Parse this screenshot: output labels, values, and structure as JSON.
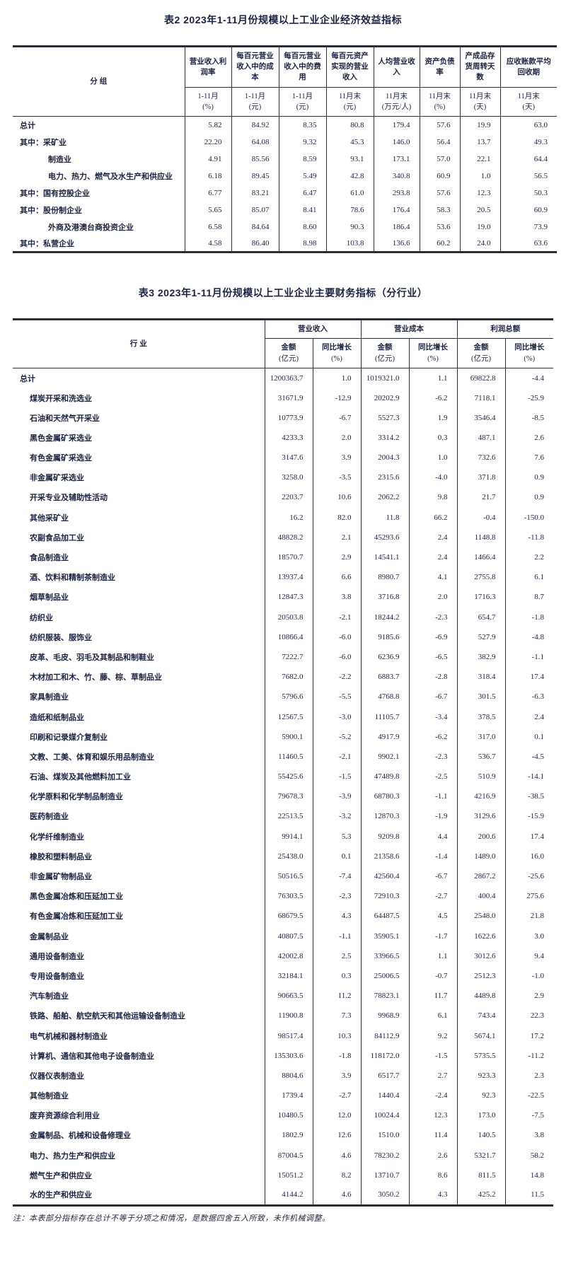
{
  "page": {
    "note": "注：本表部分指标存在总计不等于分项之和情况，是数据四舍五入所致，未作机械调整。"
  },
  "table2": {
    "title": "表2  2023年1-11月份规模以上工业企业经济效益指标",
    "group_header": "分  组",
    "columns": [
      {
        "name": "营业收入利润率",
        "period": "1-11月",
        "unit": "(%)"
      },
      {
        "name": "每百元营业收入中的成本",
        "period": "1-11月",
        "unit": "(元)"
      },
      {
        "name": "每百元营业收入中的费用",
        "period": "1-11月",
        "unit": "(元)"
      },
      {
        "name": "每百元资产实现的营业收入",
        "period": "11月末",
        "unit": "(元)"
      },
      {
        "name": "人均营业收入",
        "period": "11月末",
        "unit": "(万元/人)"
      },
      {
        "name": "资产负债率",
        "period": "11月末",
        "unit": "(%)"
      },
      {
        "name": "产成品存货周转天数",
        "period": "11月末",
        "unit": "(天)"
      },
      {
        "name": "应收账款平均回收期",
        "period": "11月末",
        "unit": "(天)"
      }
    ],
    "rows": [
      {
        "label": "总计",
        "indent": 0,
        "values": [
          "5.82",
          "84.92",
          "8.35",
          "80.8",
          "179.4",
          "57.6",
          "19.9",
          "63.0"
        ]
      },
      {
        "label": "其中：采矿业",
        "indent": 0,
        "values": [
          "22.20",
          "64.08",
          "9.32",
          "45.3",
          "146.0",
          "56.4",
          "13.7",
          "49.3"
        ]
      },
      {
        "label": "制造业",
        "indent": 1,
        "values": [
          "4.91",
          "85.56",
          "8.59",
          "93.1",
          "173.1",
          "57.0",
          "22.1",
          "64.4"
        ]
      },
      {
        "label": "电力、热力、燃气及水生产和供应业",
        "indent": 1,
        "values": [
          "6.18",
          "89.45",
          "5.49",
          "42.8",
          "340.8",
          "60.9",
          "1.0",
          "56.5"
        ]
      },
      {
        "label": "其中：国有控股企业",
        "indent": 0,
        "values": [
          "6.77",
          "83.21",
          "6.47",
          "61.0",
          "293.8",
          "57.6",
          "12.3",
          "50.3"
        ]
      },
      {
        "label": "其中：股份制企业",
        "indent": 0,
        "values": [
          "5.65",
          "85.07",
          "8.41",
          "78.6",
          "176.4",
          "58.3",
          "20.5",
          "60.9"
        ]
      },
      {
        "label": "外商及港澳台商投资企业",
        "indent": 1,
        "values": [
          "6.58",
          "84.64",
          "8.60",
          "90.3",
          "186.4",
          "53.6",
          "19.0",
          "73.9"
        ]
      },
      {
        "label": "其中：私营企业",
        "indent": 0,
        "values": [
          "4.58",
          "86.40",
          "8.98",
          "103.8",
          "136.6",
          "60.2",
          "24.0",
          "63.6"
        ]
      }
    ]
  },
  "table3": {
    "title": "表3  2023年1-11月份规模以上工业企业主要财务指标（分行业）",
    "industry_header": "行  业",
    "groups": [
      {
        "label": "营业收入"
      },
      {
        "label": "营业成本"
      },
      {
        "label": "利润总额"
      }
    ],
    "sub_columns": [
      {
        "line1": "金额",
        "line2": "(亿元)"
      },
      {
        "line1": "同比增长",
        "line2": "(%)"
      },
      {
        "line1": "金额",
        "line2": "(亿元)"
      },
      {
        "line1": "同比增长",
        "line2": "(%)"
      },
      {
        "line1": "金额",
        "line2": "(亿元)"
      },
      {
        "line1": "同比增长",
        "line2": "(%)"
      }
    ],
    "rows": [
      {
        "label": "总计",
        "indent": 0,
        "values": [
          "1200363.7",
          "1.0",
          "1019321.0",
          "1.1",
          "69822.8",
          "-4.4"
        ]
      },
      {
        "label": "煤炭开采和洗选业",
        "indent": 1,
        "values": [
          "31671.9",
          "-12.9",
          "20202.9",
          "-6.2",
          "7118.1",
          "-25.9"
        ]
      },
      {
        "label": "石油和天然气开采业",
        "indent": 1,
        "values": [
          "10773.9",
          "-6.7",
          "5527.3",
          "1.9",
          "3546.4",
          "-8.5"
        ]
      },
      {
        "label": "黑色金属矿采选业",
        "indent": 1,
        "values": [
          "4233.3",
          "2.0",
          "3314.2",
          "0.3",
          "487.1",
          "2.6"
        ]
      },
      {
        "label": "有色金属矿采选业",
        "indent": 1,
        "values": [
          "3147.6",
          "3.9",
          "2004.3",
          "1.0",
          "732.6",
          "7.6"
        ]
      },
      {
        "label": "非金属矿采选业",
        "indent": 1,
        "values": [
          "3258.0",
          "-3.5",
          "2315.6",
          "-4.0",
          "371.8",
          "0.9"
        ]
      },
      {
        "label": "开采专业及辅助性活动",
        "indent": 1,
        "values": [
          "2203.7",
          "10.6",
          "2062.2",
          "9.8",
          "21.7",
          "0.9"
        ]
      },
      {
        "label": "其他采矿业",
        "indent": 1,
        "values": [
          "16.2",
          "82.0",
          "11.8",
          "66.2",
          "-0.4",
          "-150.0"
        ]
      },
      {
        "label": "农副食品加工业",
        "indent": 1,
        "values": [
          "48828.2",
          "2.1",
          "45293.6",
          "2.4",
          "1148.8",
          "-11.8"
        ]
      },
      {
        "label": "食品制造业",
        "indent": 1,
        "values": [
          "18570.7",
          "2.9",
          "14541.1",
          "2.4",
          "1466.4",
          "2.2"
        ]
      },
      {
        "label": "酒、饮料和精制茶制造业",
        "indent": 1,
        "values": [
          "13937.4",
          "6.6",
          "8980.7",
          "4.1",
          "2755.8",
          "6.1"
        ]
      },
      {
        "label": "烟草制品业",
        "indent": 1,
        "values": [
          "12847.3",
          "3.8",
          "3716.8",
          "2.0",
          "1716.3",
          "8.7"
        ]
      },
      {
        "label": "纺织业",
        "indent": 1,
        "values": [
          "20503.8",
          "-2.1",
          "18244.2",
          "-2.3",
          "654.7",
          "-1.8"
        ]
      },
      {
        "label": "纺织服装、服饰业",
        "indent": 1,
        "values": [
          "10866.4",
          "-6.0",
          "9185.6",
          "-6.9",
          "527.9",
          "-4.8"
        ]
      },
      {
        "label": "皮革、毛皮、羽毛及其制品和制鞋业",
        "indent": 1,
        "values": [
          "7222.7",
          "-6.0",
          "6236.9",
          "-6.5",
          "382.9",
          "-1.1"
        ]
      },
      {
        "label": "木材加工和木、竹、藤、棕、草制品业",
        "indent": 1,
        "values": [
          "7682.0",
          "-2.2",
          "6883.7",
          "-2.8",
          "318.4",
          "17.4"
        ]
      },
      {
        "label": "家具制造业",
        "indent": 1,
        "values": [
          "5796.6",
          "-5.5",
          "4768.8",
          "-6.7",
          "301.5",
          "-6.3"
        ]
      },
      {
        "label": "造纸和纸制品业",
        "indent": 1,
        "values": [
          "12567.5",
          "-3.0",
          "11105.7",
          "-3.4",
          "378.5",
          "2.4"
        ]
      },
      {
        "label": "印刷和记录媒介复制业",
        "indent": 1,
        "values": [
          "5900.1",
          "-5.2",
          "4917.9",
          "-6.2",
          "317.0",
          "0.1"
        ]
      },
      {
        "label": "文教、工美、体育和娱乐用品制造业",
        "indent": 1,
        "values": [
          "11460.5",
          "-2.1",
          "9902.1",
          "-2.3",
          "536.7",
          "-4.5"
        ]
      },
      {
        "label": "石油、煤炭及其他燃料加工业",
        "indent": 1,
        "values": [
          "55425.6",
          "-1.5",
          "47489.8",
          "-2.5",
          "510.9",
          "-14.1"
        ]
      },
      {
        "label": "化学原料和化学制品制造业",
        "indent": 1,
        "values": [
          "79678.3",
          "-3.9",
          "68780.3",
          "-1.1",
          "4216.9",
          "-38.5"
        ]
      },
      {
        "label": "医药制造业",
        "indent": 1,
        "values": [
          "22513.5",
          "-3.2",
          "12870.3",
          "-1.9",
          "3129.6",
          "-15.9"
        ]
      },
      {
        "label": "化学纤维制造业",
        "indent": 1,
        "values": [
          "9914.1",
          "5.3",
          "9209.8",
          "4.4",
          "200.6",
          "17.4"
        ]
      },
      {
        "label": "橡胶和塑料制品业",
        "indent": 1,
        "values": [
          "25438.0",
          "0.1",
          "21358.6",
          "-1.4",
          "1489.0",
          "16.0"
        ]
      },
      {
        "label": "非金属矿物制品业",
        "indent": 1,
        "values": [
          "50516.5",
          "-7.4",
          "42560.4",
          "-6.7",
          "2867.2",
          "-25.6"
        ]
      },
      {
        "label": "黑色金属冶炼和压延加工业",
        "indent": 1,
        "values": [
          "76303.5",
          "-2.3",
          "72910.3",
          "-2.7",
          "400.4",
          "275.6"
        ]
      },
      {
        "label": "有色金属冶炼和压延加工业",
        "indent": 1,
        "values": [
          "68679.5",
          "4.3",
          "64487.5",
          "4.5",
          "2548.0",
          "21.8"
        ]
      },
      {
        "label": "金属制品业",
        "indent": 1,
        "values": [
          "40807.5",
          "-1.1",
          "35905.1",
          "-1.7",
          "1622.6",
          "3.0"
        ]
      },
      {
        "label": "通用设备制造业",
        "indent": 1,
        "values": [
          "42002.8",
          "2.5",
          "33966.5",
          "1.1",
          "3012.6",
          "9.4"
        ]
      },
      {
        "label": "专用设备制造业",
        "indent": 1,
        "values": [
          "32184.1",
          "0.3",
          "25006.5",
          "-0.7",
          "2512.3",
          "-1.0"
        ]
      },
      {
        "label": "汽车制造业",
        "indent": 1,
        "values": [
          "90663.5",
          "11.2",
          "78823.1",
          "11.7",
          "4489.8",
          "2.9"
        ]
      },
      {
        "label": "铁路、船舶、航空航天和其他运输设备制造业",
        "indent": 1,
        "values": [
          "11900.8",
          "7.3",
          "9968.9",
          "6.1",
          "743.4",
          "22.3"
        ]
      },
      {
        "label": "电气机械和器材制造业",
        "indent": 1,
        "values": [
          "98517.4",
          "10.3",
          "84112.9",
          "9.2",
          "5674.1",
          "17.2"
        ]
      },
      {
        "label": "计算机、通信和其他电子设备制造业",
        "indent": 1,
        "values": [
          "135303.6",
          "-1.8",
          "118172.0",
          "-1.5",
          "5735.5",
          "-11.2"
        ]
      },
      {
        "label": "仪器仪表制造业",
        "indent": 1,
        "values": [
          "8804.6",
          "3.9",
          "6517.7",
          "2.7",
          "923.3",
          "2.3"
        ]
      },
      {
        "label": "其他制造业",
        "indent": 1,
        "values": [
          "1739.4",
          "-2.7",
          "1440.4",
          "-2.4",
          "92.3",
          "-22.5"
        ]
      },
      {
        "label": "废弃资源综合利用业",
        "indent": 1,
        "values": [
          "10480.5",
          "12.0",
          "10024.4",
          "12.3",
          "173.0",
          "-7.5"
        ]
      },
      {
        "label": "金属制品、机械和设备修理业",
        "indent": 1,
        "values": [
          "1802.9",
          "12.6",
          "1510.0",
          "11.4",
          "140.5",
          "3.8"
        ]
      },
      {
        "label": "电力、热力生产和供应业",
        "indent": 1,
        "values": [
          "87004.5",
          "4.6",
          "78230.2",
          "2.6",
          "5321.7",
          "58.2"
        ]
      },
      {
        "label": "燃气生产和供应业",
        "indent": 1,
        "values": [
          "15051.2",
          "8.2",
          "13710.7",
          "8.6",
          "811.5",
          "14.8"
        ]
      },
      {
        "label": "水的生产和供应业",
        "indent": 1,
        "values": [
          "4144.2",
          "4.6",
          "3050.2",
          "4.3",
          "425.2",
          "11.5"
        ]
      }
    ]
  }
}
